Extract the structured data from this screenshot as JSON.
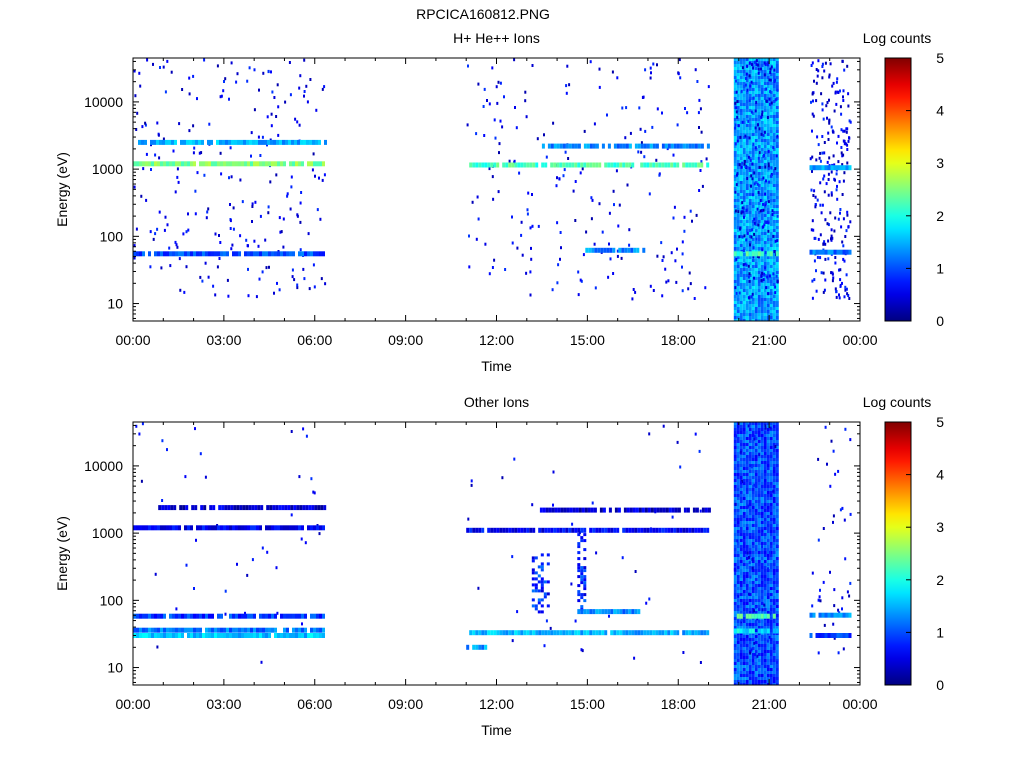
{
  "figure": {
    "filename": "RPCICA160812.PNG"
  },
  "colorbar": {
    "label": "Log counts",
    "ticks": [
      "0",
      "1",
      "2",
      "3",
      "4",
      "5"
    ],
    "range": [
      0,
      5
    ],
    "colormap": "jet"
  },
  "chart_data": [
    {
      "type": "heatmap",
      "title": "H+ He++ Ions",
      "xlabel": "Time",
      "ylabel": "Energy (eV)",
      "xlim": [
        "00:00",
        "24:00"
      ],
      "ylim": [
        5.5,
        45000
      ],
      "yscale": "log",
      "x_ticks": [
        "00:00",
        "03:00",
        "06:00",
        "09:00",
        "12:00",
        "15:00",
        "18:00",
        "21:00",
        "00:00"
      ],
      "y_ticks": [
        "10",
        "100",
        "1000",
        "10000"
      ],
      "data_intervals": [
        [
          "00:00",
          "06:20"
        ],
        [
          "11:00",
          "19:00"
        ],
        [
          "19:50",
          "21:15"
        ],
        [
          "22:20",
          "23:40"
        ]
      ],
      "bands": [
        {
          "energy_eV": 1200,
          "start": "00:00",
          "end": "06:20",
          "log_counts": 2.5
        },
        {
          "energy_eV": 2500,
          "start": "00:10",
          "end": "06:20",
          "log_counts": 1.5
        },
        {
          "energy_eV": 55,
          "start": "00:00",
          "end": "06:20",
          "log_counts": 1.0
        },
        {
          "energy_eV": 1150,
          "start": "11:00",
          "end": "19:00",
          "log_counts": 2.2
        },
        {
          "energy_eV": 2200,
          "start": "13:30",
          "end": "19:00",
          "log_counts": 1.3
        },
        {
          "energy_eV": 62,
          "start": "14:50",
          "end": "16:50",
          "log_counts": 1.3
        },
        {
          "energy_eV": 1050,
          "start": "22:20",
          "end": "23:40",
          "log_counts": 1.4
        },
        {
          "energy_eV": 58,
          "start": "22:20",
          "end": "23:40",
          "log_counts": 1.2
        },
        {
          "energy_eV": 55,
          "start": "19:50",
          "end": "21:15",
          "log_counts": 2.2
        }
      ],
      "broadband": [
        {
          "start": "19:50",
          "end": "21:15",
          "log_counts": 1.4
        }
      ]
    },
    {
      "type": "heatmap",
      "title": "Other Ions",
      "xlabel": "Time",
      "ylabel": "Energy (eV)",
      "xlim": [
        "00:00",
        "24:00"
      ],
      "ylim": [
        5.5,
        45000
      ],
      "yscale": "log",
      "x_ticks": [
        "00:00",
        "03:00",
        "06:00",
        "09:00",
        "12:00",
        "15:00",
        "18:00",
        "21:00",
        "00:00"
      ],
      "y_ticks": [
        "10",
        "100",
        "1000",
        "10000"
      ],
      "data_intervals": [
        [
          "00:00",
          "06:20"
        ],
        [
          "11:00",
          "19:00"
        ],
        [
          "19:50",
          "21:15"
        ],
        [
          "22:20",
          "23:40"
        ]
      ],
      "bands": [
        {
          "energy_eV": 30,
          "start": "00:00",
          "end": "06:20",
          "log_counts": 1.6
        },
        {
          "energy_eV": 36,
          "start": "00:00",
          "end": "06:20",
          "log_counts": 1.2
        },
        {
          "energy_eV": 58,
          "start": "00:00",
          "end": "06:20",
          "log_counts": 0.9
        },
        {
          "energy_eV": 1200,
          "start": "00:00",
          "end": "06:20",
          "log_counts": 0.6
        },
        {
          "energy_eV": 2400,
          "start": "00:50",
          "end": "06:20",
          "log_counts": 0.4
        },
        {
          "energy_eV": 33,
          "start": "11:00",
          "end": "19:00",
          "log_counts": 1.5
        },
        {
          "energy_eV": 20,
          "start": "11:00",
          "end": "11:40",
          "log_counts": 1.4
        },
        {
          "energy_eV": 1100,
          "start": "11:00",
          "end": "19:00",
          "log_counts": 0.6
        },
        {
          "energy_eV": 2200,
          "start": "13:20",
          "end": "19:00",
          "log_counts": 0.4
        },
        {
          "energy_eV": 68,
          "start": "14:40",
          "end": "16:50",
          "log_counts": 1.3
        },
        {
          "energy_eV": 60,
          "start": "22:20",
          "end": "23:40",
          "log_counts": 1.3
        },
        {
          "energy_eV": 30,
          "start": "22:20",
          "end": "23:40",
          "log_counts": 1.0
        },
        {
          "energy_eV": 58,
          "start": "19:50",
          "end": "21:15",
          "log_counts": 2.3
        },
        {
          "energy_eV": 35,
          "start": "19:50",
          "end": "21:15",
          "log_counts": 1.8
        }
      ],
      "broadband": [
        {
          "start": "19:50",
          "end": "21:15",
          "log_counts": 1.0
        },
        {
          "start": "13:10",
          "end": "13:45",
          "log_counts": 0.8,
          "energy_range_eV": [
            70,
            500
          ]
        },
        {
          "start": "14:40",
          "end": "14:55",
          "log_counts": 0.8,
          "energy_range_eV": [
            70,
            1000
          ]
        }
      ]
    }
  ]
}
